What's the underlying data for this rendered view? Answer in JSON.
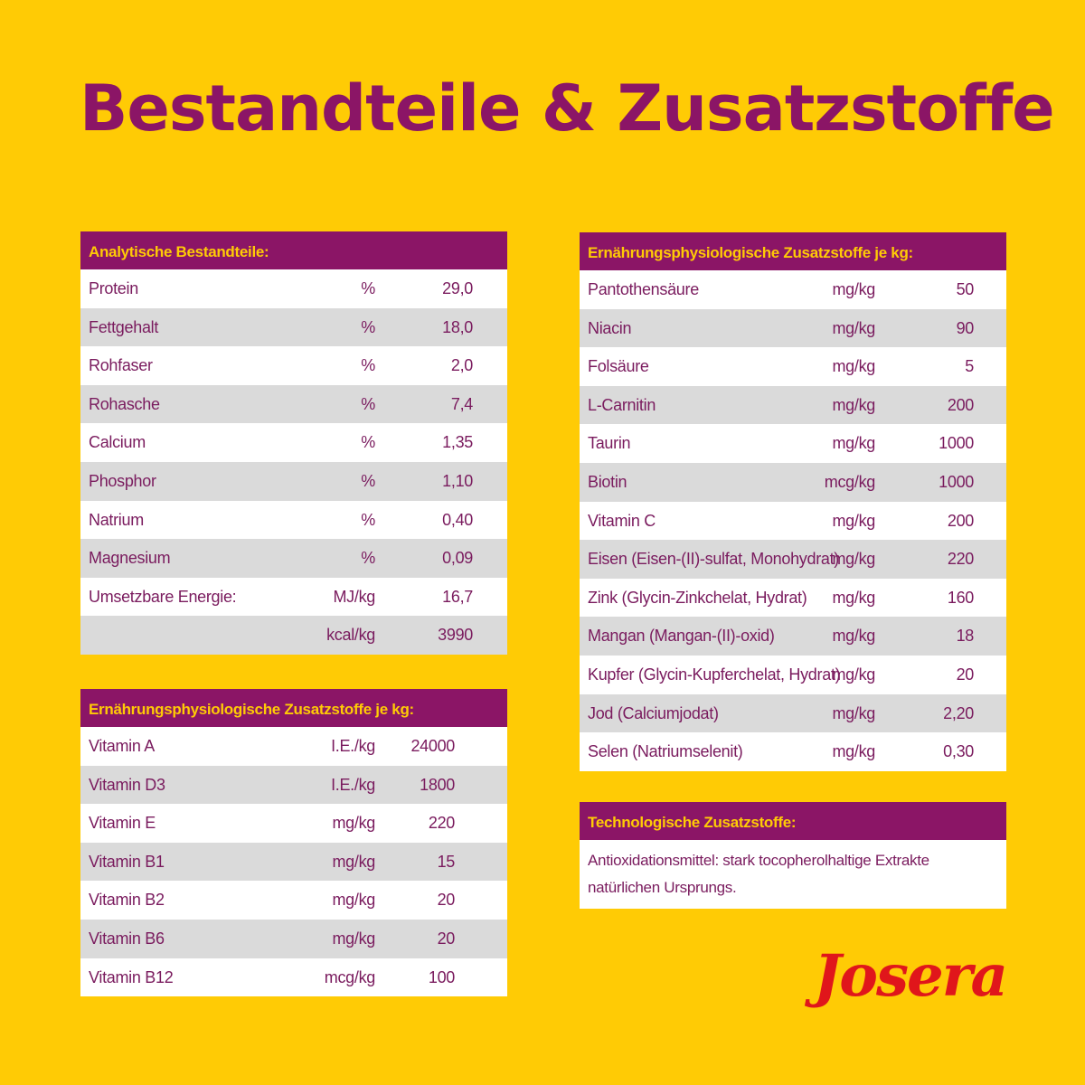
{
  "title": "Bestandteile & Zusatzstoffe",
  "colors": {
    "background": "#FFCB05",
    "header": "#8B1566",
    "text": "#7A1B5E",
    "row_alt": "#DADADA",
    "logo": "#E0161B"
  },
  "analytic": {
    "header": "Analytische Bestandteile:",
    "rows": [
      {
        "name": "Protein",
        "unit": "%",
        "value": "29,0"
      },
      {
        "name": "Fettgehalt",
        "unit": "%",
        "value": "18,0"
      },
      {
        "name": "Rohfaser",
        "unit": "%",
        "value": "2,0"
      },
      {
        "name": "Rohasche",
        "unit": "%",
        "value": "7,4"
      },
      {
        "name": "Calcium",
        "unit": "%",
        "value": "1,35"
      },
      {
        "name": "Phosphor",
        "unit": "%",
        "value": "1,10"
      },
      {
        "name": "Natrium",
        "unit": "%",
        "value": "0,40"
      },
      {
        "name": "Magnesium",
        "unit": "%",
        "value": "0,09"
      },
      {
        "name": "Umsetzbare Energie:",
        "unit": "MJ/kg",
        "value": "16,7"
      },
      {
        "name": "",
        "unit": "kcal/kg",
        "value": "3990"
      }
    ]
  },
  "nutri_left": {
    "header": "Ernährungsphysiologische Zusatzstoffe je kg:",
    "rows": [
      {
        "name": "Vitamin A",
        "unit": "I.E./kg",
        "value": "24000"
      },
      {
        "name": "Vitamin D3",
        "unit": "I.E./kg",
        "value": "1800"
      },
      {
        "name": "Vitamin E",
        "unit": "mg/kg",
        "value": "220"
      },
      {
        "name": "Vitamin B1",
        "unit": "mg/kg",
        "value": "15"
      },
      {
        "name": "Vitamin B2",
        "unit": "mg/kg",
        "value": "20"
      },
      {
        "name": "Vitamin B6",
        "unit": "mg/kg",
        "value": "20"
      },
      {
        "name": "Vitamin B12",
        "unit": "mcg/kg",
        "value": "100"
      }
    ]
  },
  "nutri_right": {
    "header": "Ernährungsphysiologische Zusatzstoffe je kg:",
    "rows": [
      {
        "name": "Pantothensäure",
        "unit": "mg/kg",
        "value": "50"
      },
      {
        "name": "Niacin",
        "unit": "mg/kg",
        "value": "90"
      },
      {
        "name": "Folsäure",
        "unit": "mg/kg",
        "value": "5"
      },
      {
        "name": "L-Carnitin",
        "unit": "mg/kg",
        "value": "200"
      },
      {
        "name": "Taurin",
        "unit": "mg/kg",
        "value": "1000"
      },
      {
        "name": "Biotin",
        "unit": "mcg/kg",
        "value": "1000"
      },
      {
        "name": "Vitamin C",
        "unit": "mg/kg",
        "value": "200"
      },
      {
        "name": "Eisen (Eisen-(II)-sulfat, Monohydrat)",
        "unit": "mg/kg",
        "value": "220"
      },
      {
        "name": "Zink (Glycin-Zinkchelat, Hydrat)",
        "unit": "mg/kg",
        "value": "160"
      },
      {
        "name": "Mangan (Mangan-(II)-oxid)",
        "unit": "mg/kg",
        "value": "18"
      },
      {
        "name": "Kupfer (Glycin-Kupferchelat, Hydrat)",
        "unit": "mg/kg",
        "value": "20"
      },
      {
        "name": "Jod (Calciumjodat)",
        "unit": "mg/kg",
        "value": "2,20"
      },
      {
        "name": "Selen (Natriumselenit)",
        "unit": "mg/kg",
        "value": "0,30"
      }
    ]
  },
  "tech": {
    "header": "Technologische Zusatzstoffe:",
    "text_line1": "Antioxidationsmittel: stark tocopherolhaltige Extrakte",
    "text_line2": "natürlichen Ursprungs."
  },
  "logo": "Josera"
}
